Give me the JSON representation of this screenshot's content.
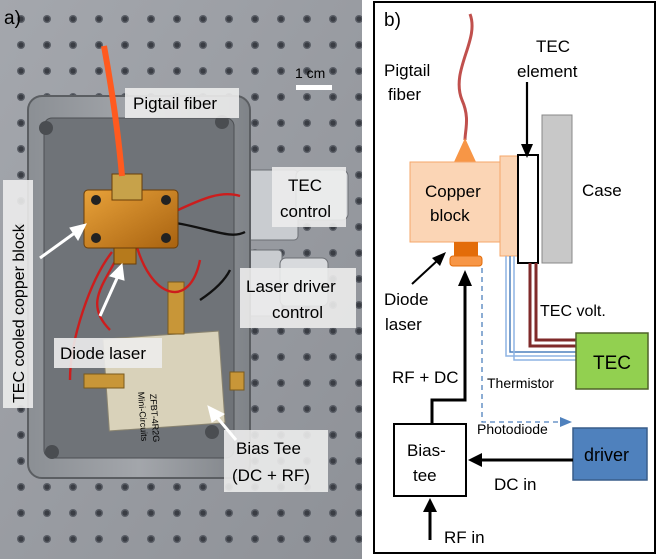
{
  "panel_a": {
    "label": "a)",
    "scale_bar": "1 cm",
    "labels": {
      "pigtail_fiber": "Pigtail fiber",
      "tec_cooled_copper_block": "TEC cooled copper block",
      "diode_laser": "Diode laser",
      "tec_control": [
        "TEC",
        "control"
      ],
      "laser_driver_control": [
        "Laser driver",
        "control"
      ],
      "bias_tee": [
        "Bias Tee",
        "(DC + RF)"
      ]
    },
    "chip_text": [
      "ZFBT-4R2G",
      "Mini-Circuits"
    ]
  },
  "panel_b": {
    "label": "b)",
    "labels": {
      "pigtail_fiber": [
        "Pigtail",
        "fiber"
      ],
      "tec_element": [
        "TEC",
        "element"
      ],
      "copper_block": [
        "Copper",
        "block"
      ],
      "case": "Case",
      "diode_laser": [
        "Diode",
        "laser"
      ],
      "tec_volt": "TEC volt.",
      "tec_box": "TEC",
      "thermistor": "Thermistor",
      "rf_dc": "RF + DC",
      "photodiode": "Photodiode",
      "bias_tee": [
        "Bias-",
        "tee"
      ],
      "driver_box": "driver",
      "dc_in": "DC in",
      "rf_in": "RF in"
    },
    "colors": {
      "copper_fill": "#fbd5b5",
      "copper_stroke": "#f4a76a",
      "laser_orange": "#e36c09",
      "fiber_red": "#c0504d",
      "tec_green": "#92d050",
      "driver_blue": "#4f81bd",
      "case_gray": "#c8c8c8",
      "wire_blue": "#8eb4e3",
      "wire_dark": "#7f2a2a"
    }
  }
}
